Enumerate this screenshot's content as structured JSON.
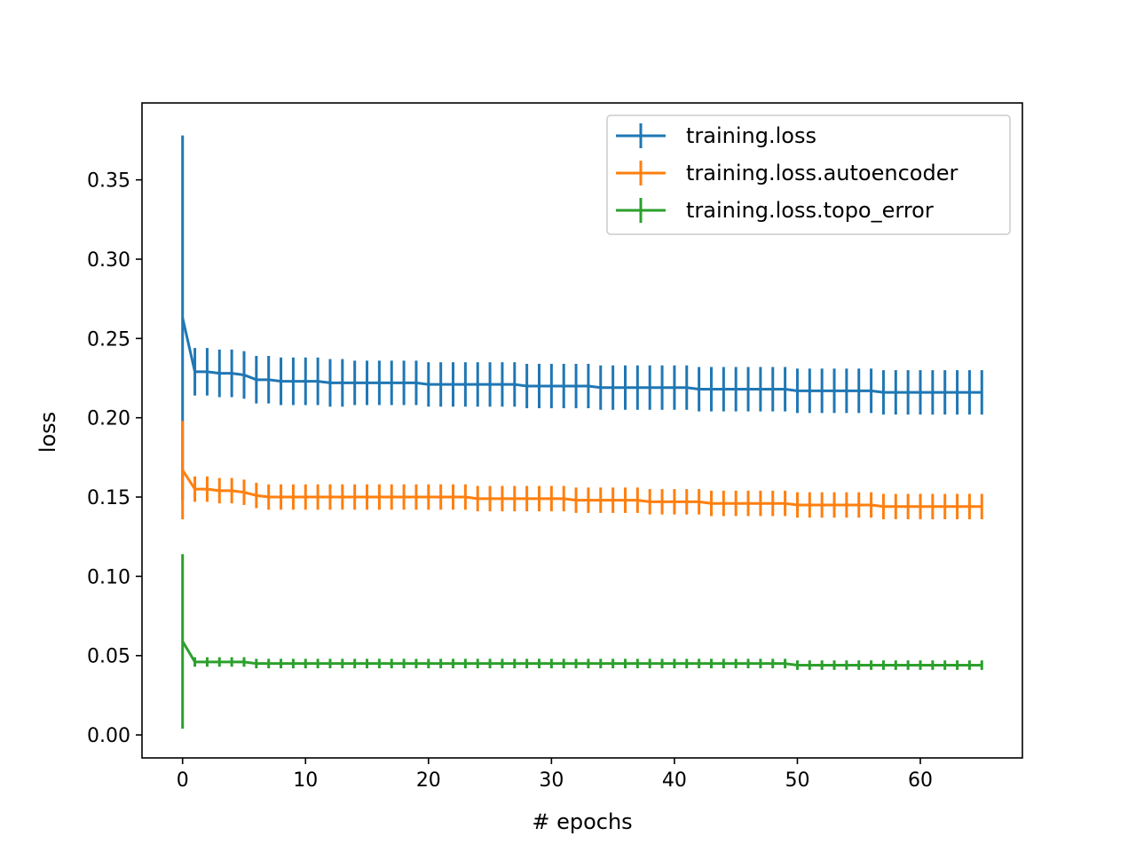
{
  "chart_data": {
    "type": "line",
    "title": "",
    "xlabel": "# epochs",
    "ylabel": "loss",
    "xlim": [
      -3.3,
      68.3
    ],
    "ylim": [
      -0.0145,
      0.3985
    ],
    "xticks": [
      0,
      10,
      20,
      30,
      40,
      50,
      60
    ],
    "xtick_labels": [
      "0",
      "10",
      "20",
      "30",
      "40",
      "50",
      "60"
    ],
    "yticks": [
      0.0,
      0.05,
      0.1,
      0.15,
      0.2,
      0.25,
      0.3,
      0.35
    ],
    "ytick_labels": [
      "0.00",
      "0.05",
      "0.10",
      "0.15",
      "0.20",
      "0.25",
      "0.30",
      "0.35"
    ],
    "grid": false,
    "legend_position": "top-right",
    "x": [
      0,
      1,
      2,
      3,
      4,
      5,
      6,
      7,
      8,
      9,
      10,
      11,
      12,
      13,
      14,
      15,
      16,
      17,
      18,
      19,
      20,
      21,
      22,
      23,
      24,
      25,
      26,
      27,
      28,
      29,
      30,
      31,
      32,
      33,
      34,
      35,
      36,
      37,
      38,
      39,
      40,
      41,
      42,
      43,
      44,
      45,
      46,
      47,
      48,
      49,
      50,
      51,
      52,
      53,
      54,
      55,
      56,
      57,
      58,
      59,
      60,
      61,
      62,
      63,
      64,
      65
    ],
    "series": [
      {
        "name": "training.loss",
        "color": "#1f77b4",
        "values": [
          0.263,
          0.229,
          0.229,
          0.228,
          0.228,
          0.227,
          0.224,
          0.224,
          0.223,
          0.223,
          0.223,
          0.223,
          0.222,
          0.222,
          0.222,
          0.222,
          0.222,
          0.222,
          0.222,
          0.222,
          0.221,
          0.221,
          0.221,
          0.221,
          0.221,
          0.221,
          0.221,
          0.221,
          0.22,
          0.22,
          0.22,
          0.22,
          0.22,
          0.22,
          0.219,
          0.219,
          0.219,
          0.219,
          0.219,
          0.219,
          0.219,
          0.219,
          0.218,
          0.218,
          0.218,
          0.218,
          0.218,
          0.218,
          0.218,
          0.218,
          0.217,
          0.217,
          0.217,
          0.217,
          0.217,
          0.217,
          0.217,
          0.216,
          0.216,
          0.216,
          0.216,
          0.216,
          0.216,
          0.216,
          0.216,
          0.216
        ],
        "errors": [
          0.115,
          0.015,
          0.015,
          0.015,
          0.015,
          0.015,
          0.015,
          0.015,
          0.015,
          0.015,
          0.015,
          0.015,
          0.015,
          0.015,
          0.014,
          0.014,
          0.014,
          0.014,
          0.014,
          0.014,
          0.014,
          0.014,
          0.014,
          0.014,
          0.014,
          0.014,
          0.014,
          0.014,
          0.014,
          0.014,
          0.014,
          0.014,
          0.014,
          0.014,
          0.014,
          0.014,
          0.014,
          0.014,
          0.014,
          0.014,
          0.014,
          0.014,
          0.014,
          0.014,
          0.014,
          0.014,
          0.014,
          0.014,
          0.014,
          0.014,
          0.014,
          0.014,
          0.014,
          0.014,
          0.014,
          0.014,
          0.014,
          0.014,
          0.014,
          0.014,
          0.014,
          0.014,
          0.014,
          0.014,
          0.014,
          0.014
        ]
      },
      {
        "name": "training.loss.autoencoder",
        "color": "#ff7f0e",
        "values": [
          0.167,
          0.155,
          0.155,
          0.154,
          0.154,
          0.153,
          0.151,
          0.15,
          0.15,
          0.15,
          0.15,
          0.15,
          0.15,
          0.15,
          0.15,
          0.15,
          0.15,
          0.15,
          0.15,
          0.15,
          0.15,
          0.15,
          0.15,
          0.15,
          0.149,
          0.149,
          0.149,
          0.149,
          0.149,
          0.149,
          0.149,
          0.149,
          0.148,
          0.148,
          0.148,
          0.148,
          0.148,
          0.148,
          0.147,
          0.147,
          0.147,
          0.147,
          0.147,
          0.146,
          0.146,
          0.146,
          0.146,
          0.146,
          0.146,
          0.146,
          0.145,
          0.145,
          0.145,
          0.145,
          0.145,
          0.145,
          0.145,
          0.144,
          0.144,
          0.144,
          0.144,
          0.144,
          0.144,
          0.144,
          0.144,
          0.144
        ],
        "errors": [
          0.031,
          0.008,
          0.008,
          0.008,
          0.008,
          0.008,
          0.008,
          0.008,
          0.008,
          0.008,
          0.008,
          0.008,
          0.008,
          0.008,
          0.008,
          0.008,
          0.008,
          0.008,
          0.008,
          0.008,
          0.008,
          0.008,
          0.008,
          0.008,
          0.008,
          0.008,
          0.008,
          0.008,
          0.008,
          0.008,
          0.008,
          0.008,
          0.008,
          0.008,
          0.008,
          0.008,
          0.008,
          0.008,
          0.008,
          0.008,
          0.008,
          0.008,
          0.008,
          0.008,
          0.008,
          0.008,
          0.008,
          0.008,
          0.008,
          0.008,
          0.008,
          0.008,
          0.008,
          0.008,
          0.008,
          0.008,
          0.008,
          0.008,
          0.008,
          0.008,
          0.008,
          0.008,
          0.008,
          0.008,
          0.008,
          0.008
        ]
      },
      {
        "name": "training.loss.topo_error",
        "color": "#2ca02c",
        "values": [
          0.059,
          0.046,
          0.046,
          0.046,
          0.046,
          0.046,
          0.045,
          0.045,
          0.045,
          0.045,
          0.045,
          0.045,
          0.045,
          0.045,
          0.045,
          0.045,
          0.045,
          0.045,
          0.045,
          0.045,
          0.045,
          0.045,
          0.045,
          0.045,
          0.045,
          0.045,
          0.045,
          0.045,
          0.045,
          0.045,
          0.045,
          0.045,
          0.045,
          0.045,
          0.045,
          0.045,
          0.045,
          0.045,
          0.045,
          0.045,
          0.045,
          0.045,
          0.045,
          0.045,
          0.045,
          0.045,
          0.045,
          0.045,
          0.045,
          0.045,
          0.044,
          0.044,
          0.044,
          0.044,
          0.044,
          0.044,
          0.044,
          0.044,
          0.044,
          0.044,
          0.044,
          0.044,
          0.044,
          0.044,
          0.044,
          0.044
        ],
        "errors": [
          0.055,
          0.003,
          0.003,
          0.003,
          0.003,
          0.003,
          0.003,
          0.003,
          0.003,
          0.003,
          0.003,
          0.003,
          0.003,
          0.003,
          0.003,
          0.003,
          0.003,
          0.003,
          0.003,
          0.003,
          0.003,
          0.003,
          0.003,
          0.003,
          0.003,
          0.003,
          0.003,
          0.003,
          0.003,
          0.003,
          0.003,
          0.003,
          0.003,
          0.003,
          0.003,
          0.003,
          0.003,
          0.003,
          0.003,
          0.003,
          0.003,
          0.003,
          0.003,
          0.003,
          0.003,
          0.003,
          0.003,
          0.003,
          0.003,
          0.003,
          0.003,
          0.003,
          0.003,
          0.003,
          0.003,
          0.003,
          0.003,
          0.003,
          0.003,
          0.003,
          0.003,
          0.003,
          0.003,
          0.003,
          0.003,
          0.003
        ]
      }
    ]
  }
}
